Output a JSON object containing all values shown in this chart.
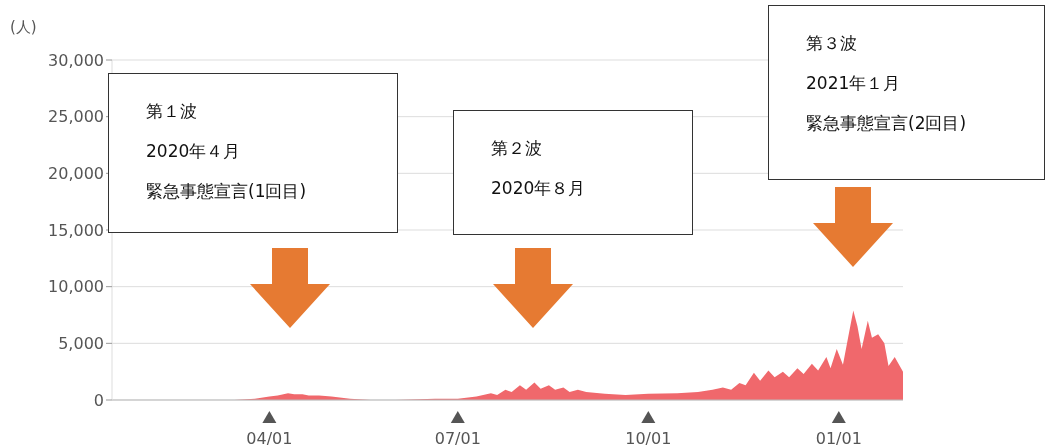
{
  "chart_data": {
    "type": "area",
    "ylabel": "(人)",
    "x": [
      "2020-01-16",
      "2020-02-01",
      "2020-02-20",
      "2020-03-05",
      "2020-03-15",
      "2020-03-25",
      "2020-04-01",
      "2020-04-05",
      "2020-04-10",
      "2020-04-13",
      "2020-04-17",
      "2020-04-20",
      "2020-04-25",
      "2020-05-01",
      "2020-05-10",
      "2020-05-20",
      "2020-06-01",
      "2020-06-20",
      "2020-07-01",
      "2020-07-10",
      "2020-07-17",
      "2020-07-20",
      "2020-07-24",
      "2020-07-27",
      "2020-07-31",
      "2020-08-03",
      "2020-08-07",
      "2020-08-10",
      "2020-08-14",
      "2020-08-17",
      "2020-08-21",
      "2020-08-24",
      "2020-08-28",
      "2020-09-01",
      "2020-09-10",
      "2020-09-20",
      "2020-10-01",
      "2020-10-15",
      "2020-10-25",
      "2020-11-01",
      "2020-11-06",
      "2020-11-10",
      "2020-11-14",
      "2020-11-17",
      "2020-11-21",
      "2020-11-24",
      "2020-11-28",
      "2020-12-01",
      "2020-12-05",
      "2020-12-08",
      "2020-12-12",
      "2020-12-15",
      "2020-12-19",
      "2020-12-22",
      "2020-12-26",
      "2020-12-28",
      "2020-12-31",
      "2021-01-03",
      "2021-01-06",
      "2021-01-08",
      "2021-01-10",
      "2021-01-12",
      "2021-01-15",
      "2021-01-17",
      "2021-01-20",
      "2021-01-23",
      "2021-01-25",
      "2021-01-28",
      "2021-02-01"
    ],
    "series": [
      {
        "color": "#f0686c",
        "values": [
          0,
          0,
          0,
          0,
          0,
          100,
          300,
          400,
          600,
          500,
          500,
          400,
          400,
          300,
          100,
          0,
          0,
          100,
          100,
          300,
          600,
          450,
          900,
          700,
          1300,
          900,
          1550,
          1000,
          1300,
          900,
          1100,
          700,
          900,
          700,
          550,
          450,
          550,
          600,
          700,
          900,
          1100,
          900,
          1500,
          1300,
          2400,
          1700,
          2600,
          2000,
          2500,
          2000,
          2800,
          2300,
          3200,
          2600,
          3800,
          2800,
          4500,
          3100,
          6000,
          7900,
          6500,
          4500,
          7000,
          5500,
          5800,
          5000,
          3000,
          3800,
          2500
        ]
      }
    ],
    "xlim": [
      "2020-01-16",
      "2021-02-01"
    ],
    "xticks": [
      {
        "value": "2020-04-01",
        "label": "04/01"
      },
      {
        "value": "2020-07-01",
        "label": "07/01"
      },
      {
        "value": "2020-10-01",
        "label": "10/01"
      },
      {
        "value": "2021-01-01",
        "label": "01/01"
      }
    ],
    "ylim": [
      0,
      30000
    ],
    "yticks": [
      0,
      {
        "value": 5000,
        "label": "5,000"
      },
      {
        "value": 10000,
        "label": "10,000"
      },
      {
        "value": 15000,
        "label": "15,000"
      },
      {
        "value": 20000,
        "label": "20,000"
      },
      {
        "value": 25000,
        "label": "25,000"
      },
      {
        "value": 30000,
        "label": "30,000"
      }
    ],
    "grid": "y",
    "annotations": [
      "第１波",
      "2020年４月",
      "緊急事態宣言(1回目)",
      "第２波",
      "2020年８月",
      "第３波",
      "2021年１月",
      "緊急事態宣言(2回目)"
    ]
  }
}
